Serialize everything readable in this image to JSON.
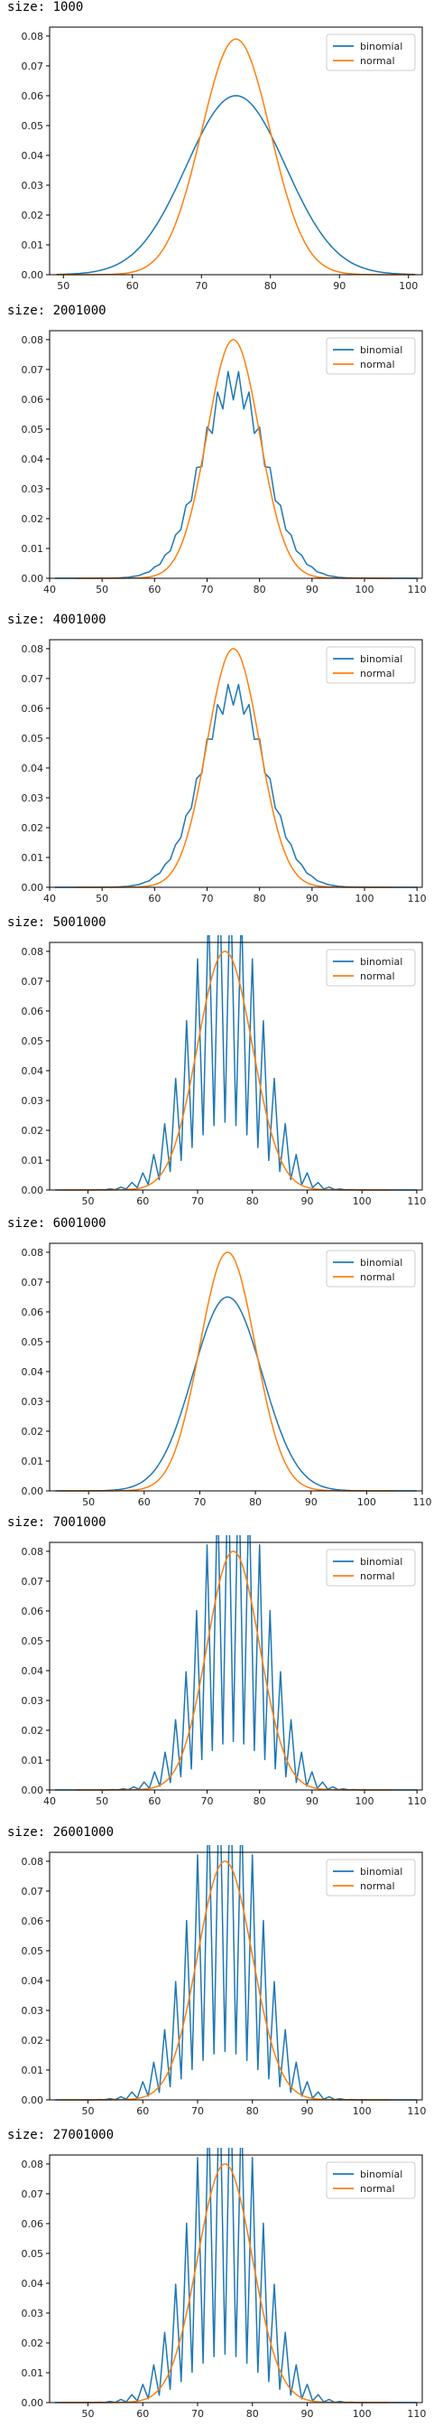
{
  "colors": {
    "binomial": "#1f77b4",
    "normal": "#ff7f0e",
    "axis": "#000000",
    "legend_border": "#cccccc"
  },
  "legend_position": "top-right",
  "chart_data": [
    {
      "type": "line",
      "size_label": "size: 1000",
      "xlim": [
        48,
        102
      ],
      "ylim": [
        0,
        0.083
      ],
      "xticks": [
        50,
        60,
        70,
        80,
        90,
        100
      ],
      "yticks": [
        0.0,
        0.01,
        0.02,
        0.03,
        0.04,
        0.05,
        0.06,
        0.07,
        0.08
      ],
      "binomial_shape": "smooth",
      "binomial_peak": 0.06,
      "normal_peak": 0.079,
      "mean": 75,
      "binomial_sd": 7.2,
      "normal_sd": 5.0,
      "series": [
        {
          "name": "binomial"
        },
        {
          "name": "normal"
        }
      ]
    },
    {
      "type": "line",
      "size_label": "size: 2001000",
      "xlim": [
        40,
        111
      ],
      "ylim": [
        0,
        0.083
      ],
      "xticks": [
        40,
        50,
        60,
        70,
        80,
        90,
        100,
        110
      ],
      "yticks": [
        0.0,
        0.01,
        0.02,
        0.03,
        0.04,
        0.05,
        0.06,
        0.07,
        0.08
      ],
      "binomial_shape": "jagged",
      "binomial_peak": 0.065,
      "jag_amp": 0.08,
      "normal_peak": 0.08,
      "mean": 75,
      "binomial_sd": 6.2,
      "normal_sd": 5.0,
      "series": [
        {
          "name": "binomial"
        },
        {
          "name": "normal"
        }
      ]
    },
    {
      "type": "line",
      "size_label": "size: 4001000",
      "xlim": [
        40,
        111
      ],
      "ylim": [
        0,
        0.083
      ],
      "xticks": [
        40,
        50,
        60,
        70,
        80,
        90,
        100,
        110
      ],
      "yticks": [
        0.0,
        0.01,
        0.02,
        0.03,
        0.04,
        0.05,
        0.06,
        0.07,
        0.08
      ],
      "binomial_shape": "jagged",
      "binomial_peak": 0.065,
      "jag_amp": 0.06,
      "normal_peak": 0.08,
      "mean": 75,
      "binomial_sd": 6.2,
      "normal_sd": 5.0,
      "series": [
        {
          "name": "binomial"
        },
        {
          "name": "normal"
        }
      ]
    },
    {
      "type": "line",
      "size_label": "size: 5001000",
      "xlim": [
        43,
        111
      ],
      "ylim": [
        0,
        0.083
      ],
      "xticks": [
        50,
        60,
        70,
        80,
        90,
        100,
        110
      ],
      "yticks": [
        0.0,
        0.01,
        0.02,
        0.03,
        0.04,
        0.05,
        0.06,
        0.07,
        0.08
      ],
      "binomial_shape": "spiky",
      "binomial_peak": 0.065,
      "jag_amp": 0.65,
      "normal_peak": 0.08,
      "mean": 75,
      "binomial_sd": 6.2,
      "normal_sd": 5.0,
      "series": [
        {
          "name": "binomial"
        },
        {
          "name": "normal"
        }
      ]
    },
    {
      "type": "line",
      "size_label": "size: 6001000",
      "xlim": [
        43,
        110
      ],
      "ylim": [
        0,
        0.083
      ],
      "xticks": [
        50,
        60,
        70,
        80,
        90,
        100,
        110
      ],
      "yticks": [
        0.0,
        0.01,
        0.02,
        0.03,
        0.04,
        0.05,
        0.06,
        0.07,
        0.08
      ],
      "binomial_shape": "smooth",
      "binomial_peak": 0.065,
      "normal_peak": 0.08,
      "mean": 75,
      "binomial_sd": 6.2,
      "normal_sd": 5.0,
      "series": [
        {
          "name": "binomial"
        },
        {
          "name": "normal"
        }
      ]
    },
    {
      "type": "line",
      "size_label": "size: 7001000",
      "xlim": [
        40,
        111
      ],
      "ylim": [
        0,
        0.083
      ],
      "xticks": [
        40,
        50,
        60,
        70,
        80,
        90,
        100,
        110
      ],
      "yticks": [
        0.0,
        0.01,
        0.02,
        0.03,
        0.04,
        0.05,
        0.06,
        0.07,
        0.08
      ],
      "binomial_shape": "spiky",
      "binomial_peak": 0.065,
      "jag_amp": 0.75,
      "normal_peak": 0.08,
      "mean": 75,
      "binomial_sd": 6.2,
      "normal_sd": 5.0,
      "series": [
        {
          "name": "binomial"
        },
        {
          "name": "normal"
        }
      ]
    },
    {
      "type": "line",
      "size_label": "size: 26001000",
      "xlim": [
        43,
        111
      ],
      "ylim": [
        0,
        0.083
      ],
      "xticks": [
        50,
        60,
        70,
        80,
        90,
        100,
        110
      ],
      "yticks": [
        0.0,
        0.01,
        0.02,
        0.03,
        0.04,
        0.05,
        0.06,
        0.07,
        0.08
      ],
      "binomial_shape": "spiky",
      "binomial_peak": 0.065,
      "jag_amp": 0.75,
      "normal_peak": 0.08,
      "mean": 75,
      "binomial_sd": 6.2,
      "normal_sd": 5.0,
      "series": [
        {
          "name": "binomial"
        },
        {
          "name": "normal"
        }
      ]
    },
    {
      "type": "line",
      "size_label": "size: 27001000",
      "xlim": [
        43,
        111
      ],
      "ylim": [
        0,
        0.083
      ],
      "xticks": [
        50,
        60,
        70,
        80,
        90,
        100,
        110
      ],
      "yticks": [
        0.0,
        0.01,
        0.02,
        0.03,
        0.04,
        0.05,
        0.06,
        0.07,
        0.08
      ],
      "binomial_shape": "spiky",
      "binomial_peak": 0.065,
      "jag_amp": 0.75,
      "normal_peak": 0.08,
      "mean": 75,
      "binomial_sd": 6.2,
      "normal_sd": 5.0,
      "series": [
        {
          "name": "binomial"
        },
        {
          "name": "normal"
        }
      ]
    }
  ]
}
